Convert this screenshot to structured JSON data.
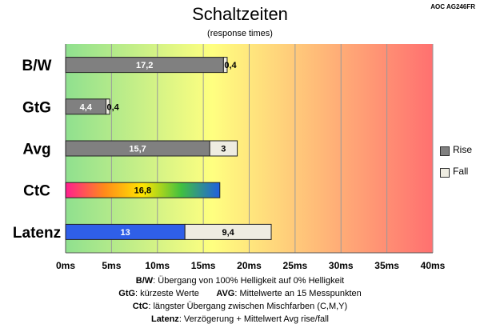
{
  "header": {
    "title": "Schaltzeiten",
    "subtitle": "(response times)",
    "model": "AOC AG246FR"
  },
  "chart_data": {
    "type": "bar",
    "orientation": "horizontal",
    "stacked": true,
    "categories": [
      "B/W",
      "GtG",
      "Avg",
      "CtC",
      "Latenz"
    ],
    "series": [
      {
        "name": "Rise",
        "values": [
          17.2,
          4.4,
          15.7,
          16.8,
          13
        ],
        "labels": [
          "17,2",
          "4,4",
          "15,7",
          "16,8",
          "13"
        ]
      },
      {
        "name": "Fall",
        "values": [
          0.4,
          0.4,
          3,
          null,
          9.4
        ],
        "labels": [
          "0,4",
          "0,4",
          "3",
          "",
          "9,4"
        ]
      }
    ],
    "xlim": [
      0,
      40
    ],
    "xticks": [
      0,
      5,
      10,
      15,
      20,
      25,
      30,
      35,
      40
    ],
    "xtick_labels": [
      "0ms",
      "5ms",
      "10ms",
      "15ms",
      "20ms",
      "25ms",
      "30ms",
      "35ms",
      "40ms"
    ],
    "grid": true,
    "legend_position": "right",
    "colors": {
      "rise": "#808080",
      "fall": "#eeece1",
      "ctc_gradient": [
        "#ff1f8f",
        "#ff8a1a",
        "#ffe600",
        "#40c040",
        "#2060e0"
      ],
      "latenz_rise": "#2f5fe8",
      "background_gradient": [
        "#8fe08f",
        "#ffff80",
        "#ff7070"
      ]
    }
  },
  "notes": [
    {
      "key": "B/W",
      "text": ":  Übergang von 100% Helligkeit auf 0% Helligkeit"
    },
    {
      "key": "GtG",
      "text": ": kürzeste  Werte",
      "key2": "AVG",
      "text2": ": Mittelwerte  an 15 Messpunkten"
    },
    {
      "key": "CtC",
      "text": ": längster Übergang  zwischen Mischfarben (C,M,Y)"
    },
    {
      "key": "Latenz",
      "text": ": Verzögerung  + Mittelwert Avg rise/fall"
    }
  ]
}
